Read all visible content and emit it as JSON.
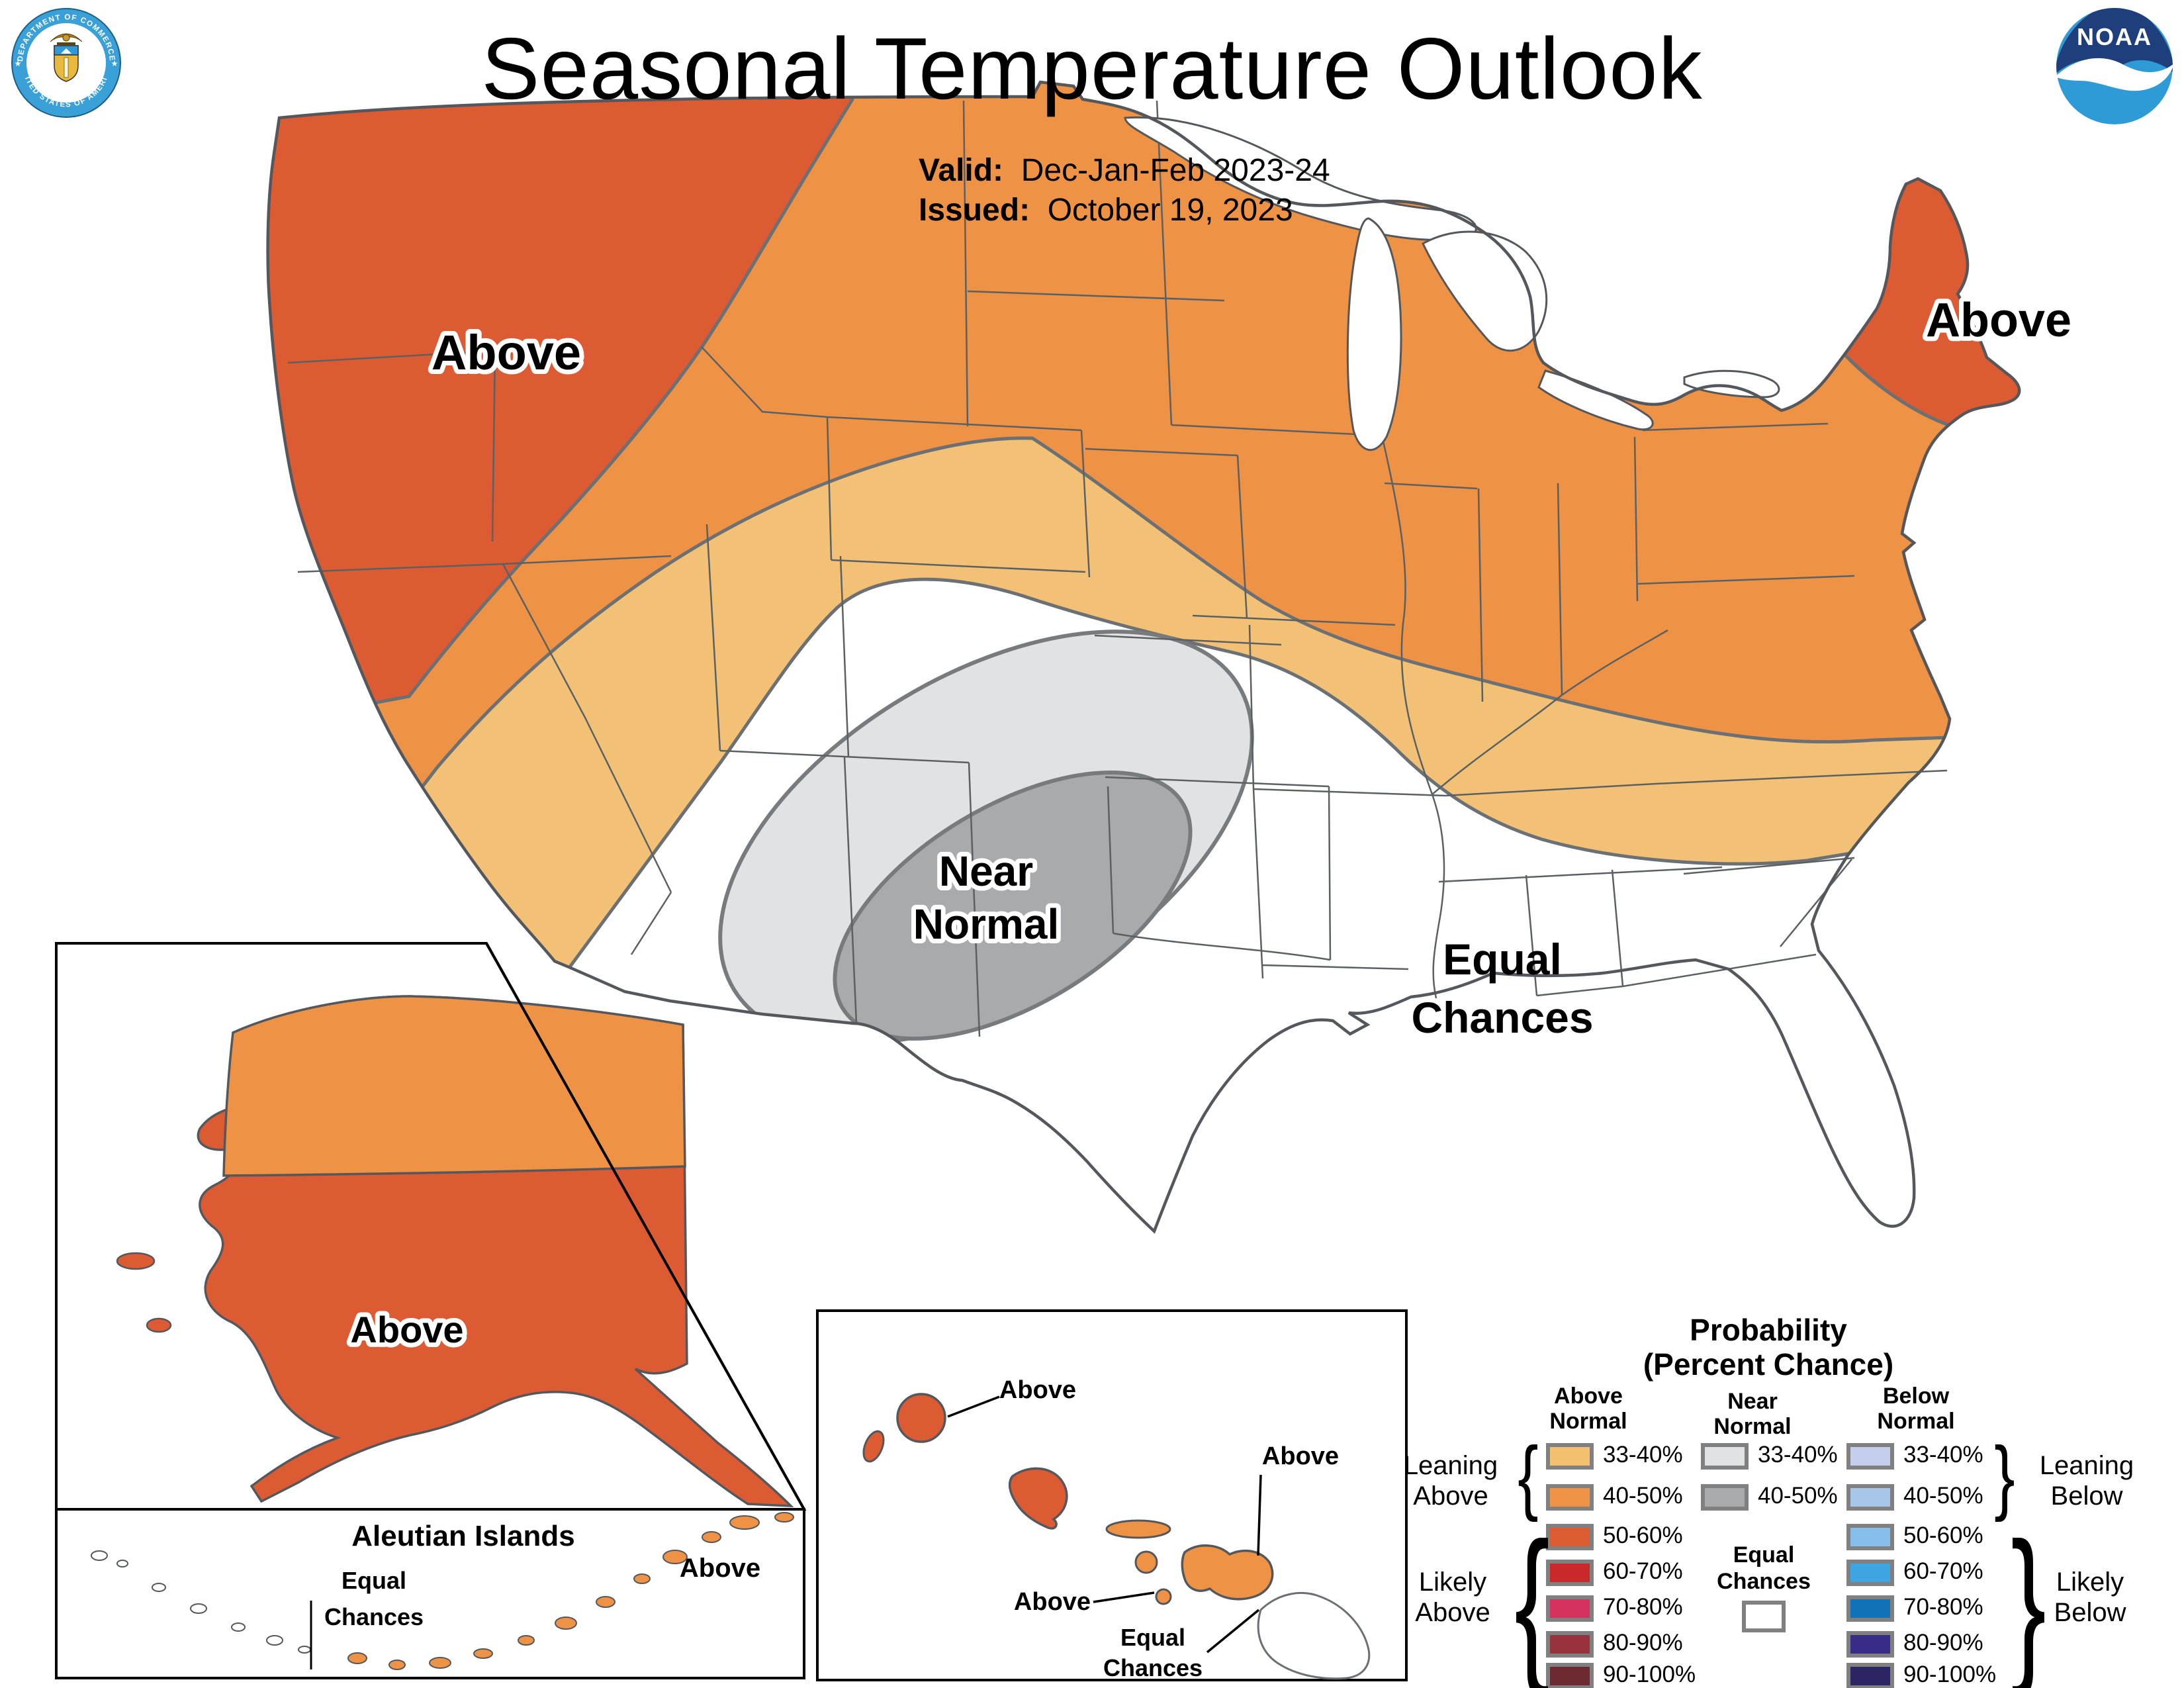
{
  "header": {
    "title": "Seasonal Temperature Outlook",
    "valid_label": "Valid:",
    "valid_value": "Dec-Jan-Feb 2023-24",
    "issued_label": "Issued:",
    "issued_value": "October 19, 2023"
  },
  "logos": {
    "commerce_ring_top": "DEPARTMENT OF COMMERCE",
    "commerce_ring_bottom": "UNITED STATES OF AMERICA",
    "noaa": "NOAA"
  },
  "map": {
    "labels": {
      "above_nw": "Above",
      "above_ne": "Above",
      "near_normal_1": "Near",
      "near_normal_2": "Normal",
      "equal_chances_1": "Equal",
      "equal_chances_2": "Chances"
    },
    "alaska": {
      "above": "Above"
    },
    "aleutian": {
      "title": "Aleutian Islands",
      "equal_1": "Equal",
      "equal_2": "Chances",
      "above": "Above"
    },
    "hawaii": {
      "above_nw": "Above",
      "above_e": "Above",
      "above_s": "Above",
      "equal_1": "Equal",
      "equal_2": "Chances"
    }
  },
  "map_colors": {
    "above_33_40": "#F2C176",
    "above_40_50": "#EE9245",
    "above_50_60": "#DC5B33",
    "near_33_40": "#E0E2E3",
    "near_40_50": "#A8AAAB",
    "equal_chances": "#FFFFFF",
    "outline": "#54585C"
  },
  "legend": {
    "title_line1": "Probability",
    "title_line2": "(Percent Chance)",
    "columns": [
      {
        "id": "above",
        "header1": "Above",
        "header2": "Normal"
      },
      {
        "id": "near",
        "header1": "Near",
        "header2": "Normal"
      },
      {
        "id": "below",
        "header1": "Below",
        "header2": "Normal"
      }
    ],
    "above_rows": [
      {
        "range": "33-40%",
        "color": "#F2C06E"
      },
      {
        "range": "40-50%",
        "color": "#EE9245"
      },
      {
        "range": "50-60%",
        "color": "#DC5B33"
      },
      {
        "range": "60-70%",
        "color": "#C9292B"
      },
      {
        "range": "70-80%",
        "color": "#D6325D"
      },
      {
        "range": "80-90%",
        "color": "#96333C"
      },
      {
        "range": "90-100%",
        "color": "#6E2A31"
      }
    ],
    "near_rows": [
      {
        "range": "33-40%",
        "color": "#E0E2E3"
      },
      {
        "range": "40-50%",
        "color": "#A8AAAB"
      }
    ],
    "below_rows": [
      {
        "range": "33-40%",
        "color": "#C5CEEA"
      },
      {
        "range": "40-50%",
        "color": "#A7C6E9"
      },
      {
        "range": "50-60%",
        "color": "#88BEEA"
      },
      {
        "range": "60-70%",
        "color": "#3CA5E2"
      },
      {
        "range": "70-80%",
        "color": "#1172B8"
      },
      {
        "range": "80-90%",
        "color": "#382C89"
      },
      {
        "range": "90-100%",
        "color": "#2C2563"
      }
    ],
    "group_labels": {
      "leaning_above_1": "Leaning",
      "leaning_above_2": "Above",
      "likely_above_1": "Likely",
      "likely_above_2": "Above",
      "leaning_below_1": "Leaning",
      "leaning_below_2": "Below",
      "likely_below_1": "Likely",
      "likely_below_2": "Below"
    },
    "equal_chances": {
      "line1": "Equal",
      "line2": "Chances"
    }
  }
}
